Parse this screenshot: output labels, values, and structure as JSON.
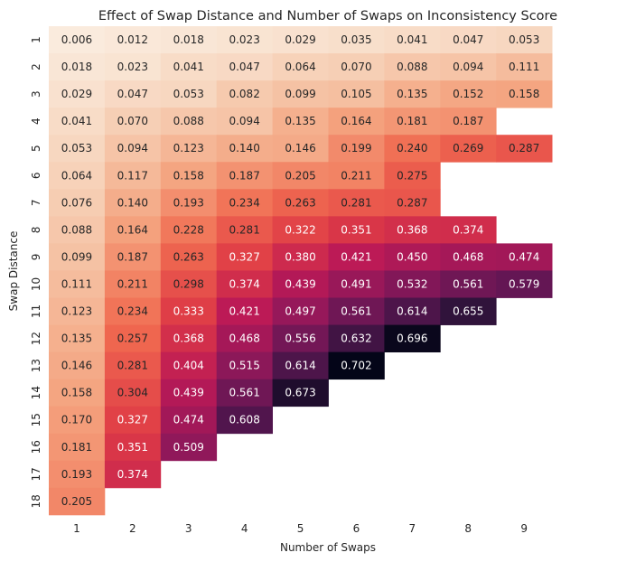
{
  "chart_data": {
    "type": "heatmap",
    "title": "Effect of Swap Distance and Number of Swaps on Inconsistency Score",
    "xlabel": "Number of Swaps",
    "ylabel": "Swap Distance",
    "x_categories": [
      "1",
      "2",
      "3",
      "4",
      "5",
      "6",
      "7",
      "8",
      "9"
    ],
    "y_categories": [
      "1",
      "2",
      "3",
      "4",
      "5",
      "6",
      "7",
      "8",
      "9",
      "10",
      "11",
      "12",
      "13",
      "14",
      "15",
      "16",
      "17",
      "18"
    ],
    "value_range": [
      0.006,
      0.702
    ],
    "colormap": "rocket_r",
    "grid": false,
    "values": [
      [
        0.006,
        0.012,
        0.018,
        0.023,
        0.029,
        0.035,
        0.041,
        0.047,
        0.053
      ],
      [
        0.018,
        0.023,
        0.041,
        0.047,
        0.064,
        0.07,
        0.088,
        0.094,
        0.111
      ],
      [
        0.029,
        0.047,
        0.053,
        0.082,
        0.099,
        0.105,
        0.135,
        0.152,
        0.158
      ],
      [
        0.041,
        0.07,
        0.088,
        0.094,
        0.135,
        0.164,
        0.181,
        0.187,
        null
      ],
      [
        0.053,
        0.094,
        0.123,
        0.14,
        0.146,
        0.199,
        0.24,
        0.269,
        0.287
      ],
      [
        0.064,
        0.117,
        0.158,
        0.187,
        0.205,
        0.211,
        0.275,
        null,
        null
      ],
      [
        0.076,
        0.14,
        0.193,
        0.234,
        0.263,
        0.281,
        0.287,
        null,
        null
      ],
      [
        0.088,
        0.164,
        0.228,
        0.281,
        0.322,
        0.351,
        0.368,
        0.374,
        null
      ],
      [
        0.099,
        0.187,
        0.263,
        0.327,
        0.38,
        0.421,
        0.45,
        0.468,
        0.474
      ],
      [
        0.111,
        0.211,
        0.298,
        0.374,
        0.439,
        0.491,
        0.532,
        0.561,
        0.579
      ],
      [
        0.123,
        0.234,
        0.333,
        0.421,
        0.497,
        0.561,
        0.614,
        0.655,
        null
      ],
      [
        0.135,
        0.257,
        0.368,
        0.468,
        0.556,
        0.632,
        0.696,
        null,
        null
      ],
      [
        0.146,
        0.281,
        0.404,
        0.515,
        0.614,
        0.702,
        null,
        null,
        null
      ],
      [
        0.158,
        0.304,
        0.439,
        0.561,
        0.673,
        null,
        null,
        null,
        null
      ],
      [
        0.17,
        0.327,
        0.474,
        0.608,
        null,
        null,
        null,
        null,
        null
      ],
      [
        0.181,
        0.351,
        0.509,
        null,
        null,
        null,
        null,
        null,
        null
      ],
      [
        0.193,
        0.374,
        null,
        null,
        null,
        null,
        null,
        null,
        null
      ],
      [
        0.205,
        null,
        null,
        null,
        null,
        null,
        null,
        null,
        null
      ]
    ]
  }
}
